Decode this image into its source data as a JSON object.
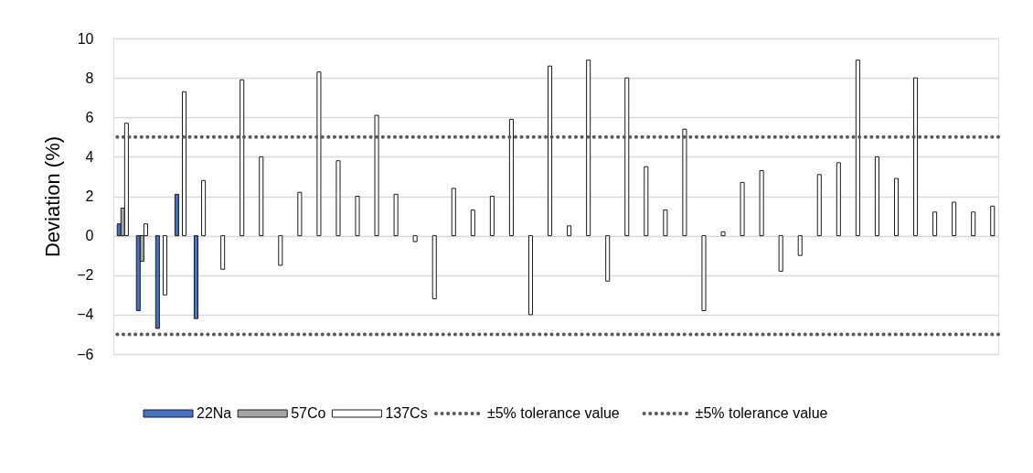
{
  "chart_data": {
    "type": "bar",
    "ylabel": "Deviation (%)",
    "categories": [
      null,
      null,
      null,
      null,
      null,
      null,
      null,
      null,
      null,
      null,
      null,
      null,
      null,
      null,
      null,
      null,
      null,
      null,
      null,
      null,
      null,
      null,
      null,
      null,
      null,
      null,
      null,
      null,
      null,
      null,
      null,
      null,
      null,
      null,
      null,
      null,
      null,
      null,
      null,
      null,
      null,
      null,
      null,
      null,
      null,
      null
    ],
    "series": [
      {
        "name": "22Na",
        "color": "#4472c4",
        "values": [
          0.6,
          -3.8,
          -4.7,
          2.1,
          -4.2,
          null,
          null,
          null,
          null,
          null,
          null,
          null,
          null,
          null,
          null,
          null,
          null,
          null,
          null,
          null,
          null,
          null,
          null,
          null,
          null,
          null,
          null,
          null,
          null,
          null,
          null,
          null,
          null,
          null,
          null,
          null,
          null,
          null,
          null,
          null,
          null,
          null,
          null,
          null,
          null,
          null
        ]
      },
      {
        "name": "57Co",
        "color": "#a6a6a6",
        "values": [
          1.4,
          -1.3,
          null,
          null,
          null,
          null,
          null,
          null,
          null,
          null,
          null,
          null,
          null,
          null,
          null,
          null,
          null,
          null,
          null,
          null,
          null,
          null,
          null,
          null,
          null,
          null,
          null,
          null,
          null,
          null,
          null,
          null,
          null,
          null,
          null,
          null,
          null,
          null,
          null,
          null,
          null,
          null,
          null,
          null,
          null,
          null
        ]
      },
      {
        "name": "137Cs",
        "color": "#ffffff",
        "values": [
          5.7,
          0.6,
          -3.0,
          7.3,
          2.8,
          -1.7,
          7.9,
          4.0,
          -1.5,
          2.2,
          8.3,
          3.8,
          2.0,
          6.1,
          2.1,
          -0.3,
          -3.2,
          2.4,
          1.3,
          2.0,
          5.9,
          -4.0,
          8.6,
          0.5,
          8.9,
          -2.3,
          8.0,
          3.5,
          1.3,
          5.4,
          -3.8,
          0.2,
          2.7,
          3.3,
          -1.8,
          -1.0,
          3.1,
          3.7,
          8.9,
          4.0,
          2.9,
          8.0,
          1.2,
          1.7,
          1.2,
          1.5
        ]
      }
    ],
    "ylim": [
      -6,
      10
    ],
    "yticks": [
      -6,
      -4,
      -2,
      0,
      2,
      4,
      6,
      8,
      10
    ],
    "grid": "y",
    "legend": "bottom",
    "tick_labels": "y",
    "ref_lines": [
      {
        "axis": "y",
        "value": 5,
        "label": "±5% tolerance value",
        "color": "#595959",
        "line_style": "dotted"
      },
      {
        "axis": "y",
        "value": -5,
        "label": "±5% tolerance value",
        "color": "#595959",
        "line_style": "dotted"
      }
    ]
  }
}
